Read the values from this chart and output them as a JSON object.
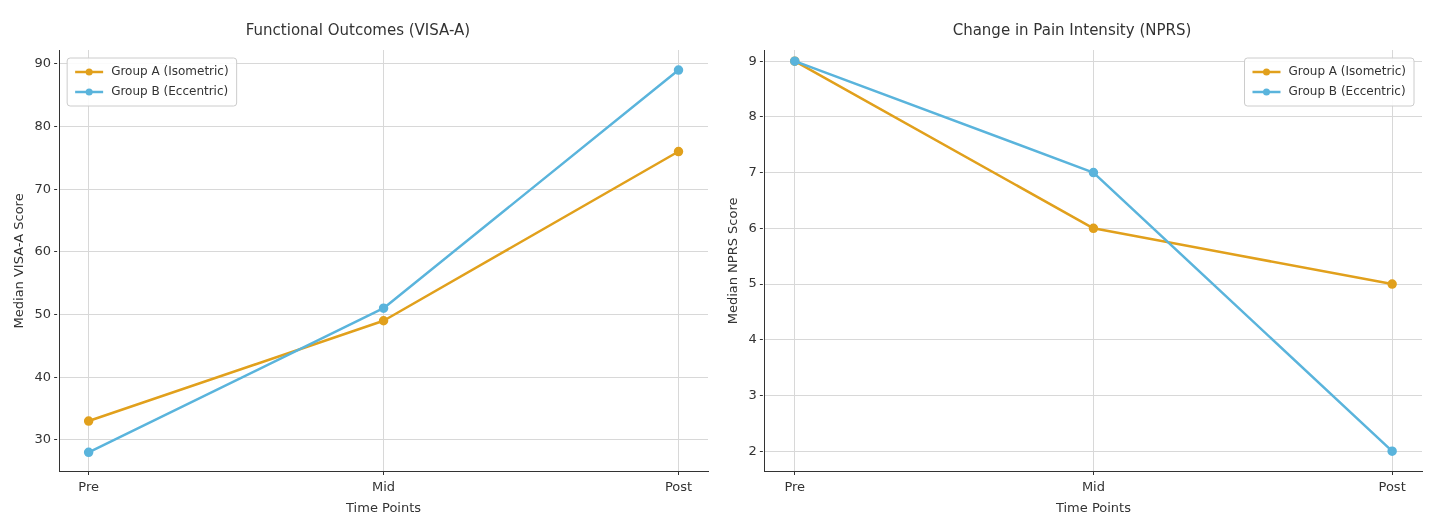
{
  "chart_data": [
    {
      "type": "line",
      "title": "Functional Outcomes (VISA-A)",
      "xlabel": "Time Points",
      "ylabel": "Median VISA-A Score",
      "categories": [
        "Pre",
        "Mid",
        "Post"
      ],
      "series": [
        {
          "name": "Group A (Isometric)",
          "color": "#e1a01c",
          "values": [
            33,
            49,
            76
          ]
        },
        {
          "name": "Group B (Eccentric)",
          "color": "#5ab4dc",
          "values": [
            28,
            51,
            89
          ]
        }
      ],
      "ylim": [
        24.9,
        92.2
      ],
      "yticks": [
        30,
        40,
        50,
        60,
        70,
        80,
        90
      ],
      "grid": true,
      "legend": "top left",
      "marker": "circle",
      "line_style": "solid"
    },
    {
      "type": "line",
      "title": "Change in Pain Intensity (NPRS)",
      "xlabel": "Time Points",
      "ylabel": "Median NPRS Score",
      "categories": [
        "Pre",
        "Mid",
        "Post"
      ],
      "series": [
        {
          "name": "Group A (Isometric)",
          "color": "#e1a01c",
          "values": [
            9,
            6,
            5
          ]
        },
        {
          "name": "Group B (Eccentric)",
          "color": "#5ab4dc",
          "values": [
            9,
            7,
            2
          ]
        }
      ],
      "ylim": [
        1.63,
        9.2
      ],
      "yticks": [
        2,
        3,
        4,
        5,
        6,
        7,
        8,
        9
      ],
      "grid": true,
      "legend": "top right",
      "marker": "circle",
      "line_style": "solid"
    }
  ]
}
